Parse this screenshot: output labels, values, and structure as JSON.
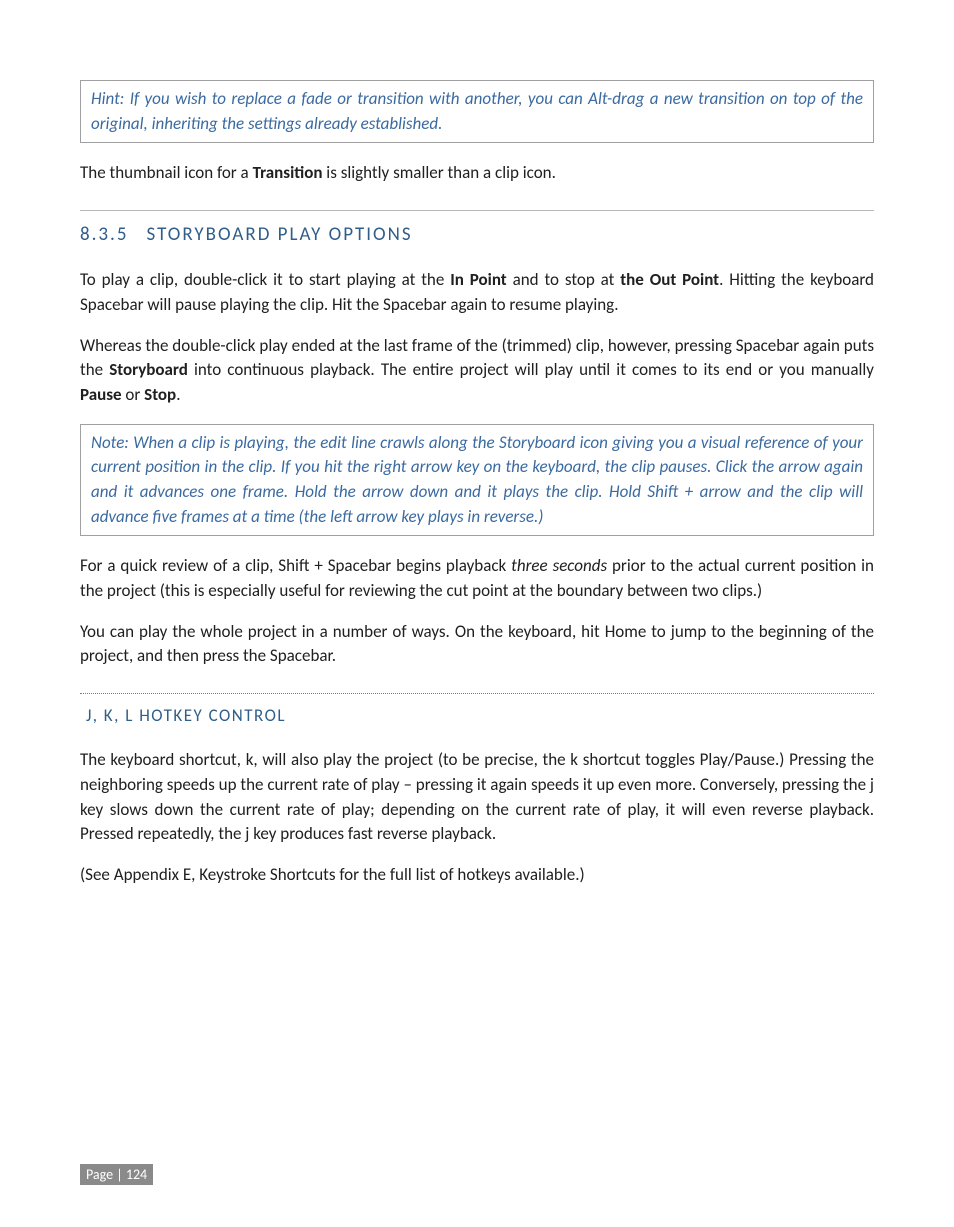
{
  "hint": {
    "text": "Hint: If you wish to replace a fade or transition with another, you can Alt-drag a new transition on top of the original, inheriting the settings already established."
  },
  "intro_line": {
    "pre": "The thumbnail icon for a ",
    "bold": "Transition",
    "post": " is slightly smaller than a clip icon."
  },
  "section": {
    "number": "8.3.5",
    "title": "STORYBOARD PLAY OPTIONS"
  },
  "para1": {
    "t1": "To play a clip, double-click it to start playing at the ",
    "b1": "In Point",
    "t2": " and to stop at ",
    "b2": "the Out Point",
    "t3": ". Hitting the keyboard Spacebar will pause playing the clip. Hit the Spacebar again to resume playing."
  },
  "para2": {
    "t1": "Whereas the double-click play ended at the last frame of the (trimmed) clip, however, pressing Spacebar again puts the ",
    "b1": "Storyboard",
    "t2": " into continuous playback.  The entire project will play until it comes to its end or you manually ",
    "b2": "Pause",
    "t3": " or ",
    "b3": "Stop",
    "t4": "."
  },
  "note": {
    "text": "Note: When a clip is playing, the edit line crawls along the Storyboard icon giving you a visual reference of your current position in the clip. If you hit the right arrow key on the keyboard, the clip pauses. Click the arrow again and it advances one frame. Hold the arrow down and it plays the clip. Hold Shift + arrow and the clip will advance five frames at a time (the left arrow key plays in reverse.)"
  },
  "para3": {
    "t1": "For a quick review of a clip, Shift + Spacebar begins playback ",
    "i1": "three seconds",
    "t2": " prior to the actual current position in the project (this is especially useful for reviewing the cut point at the boundary between two clips.)"
  },
  "para4": {
    "text": "You can play the whole project in a number of ways. On the keyboard, hit Home to jump to the beginning of the project, and then press the Spacebar."
  },
  "subheading": {
    "title": "J, K, L HOTKEY CONTROL"
  },
  "para5": {
    "text": "The keyboard shortcut, k, will also play the project (to be precise, the k shortcut toggles Play/Pause.) Pressing the neighboring speeds up the current rate of play – pressing it again speeds it up even more.  Conversely, pressing the j key slows down the current rate of play; depending on the current rate of play, it will even reverse playback.  Pressed repeatedly, the j key produces fast reverse playback."
  },
  "para6": {
    "text": "(See Appendix E, Keystroke Shortcuts for the full list of hotkeys available.)"
  },
  "footer": {
    "label": "Page | 124"
  },
  "colors": {
    "body_text": "#202020",
    "accent_text": "#3a6aa0",
    "heading_text": "#305e8a",
    "border_gray": "#a0a0a0",
    "badge_bg": "#8a8a8a",
    "badge_fg": "#ffffff",
    "background": "#ffffff"
  }
}
